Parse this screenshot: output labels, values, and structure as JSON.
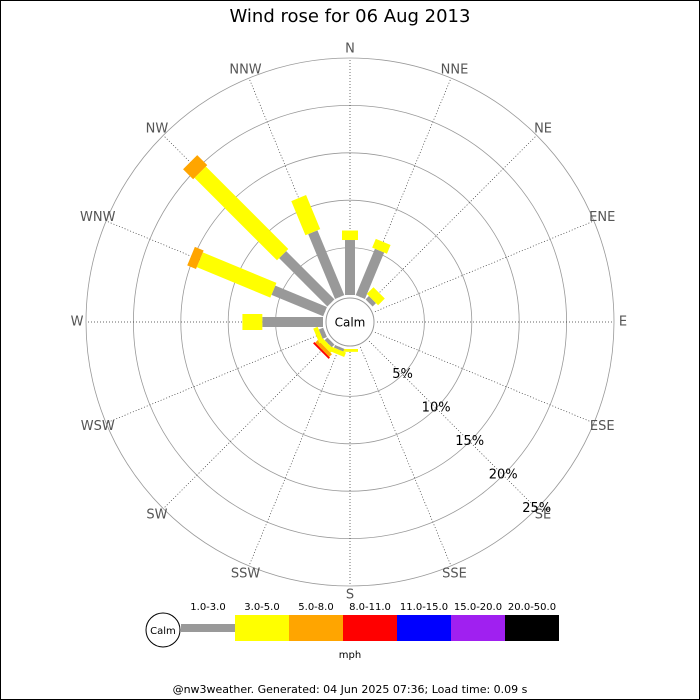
{
  "chart_data": {
    "type": "windrose",
    "title": "Wind rose for 06 Aug 2013",
    "categories": [
      "N",
      "NNE",
      "NE",
      "ENE",
      "E",
      "ESE",
      "SE",
      "SSE",
      "S",
      "SSW",
      "SW",
      "WSW",
      "W",
      "WNW",
      "NW",
      "NNW"
    ],
    "calm_label": "Calm",
    "legend_title": "mph",
    "rlim": [
      0,
      25
    ],
    "rticks": [
      {
        "value": 5,
        "label": "5%"
      },
      {
        "value": 10,
        "label": "10%"
      },
      {
        "value": 15,
        "label": "15%"
      },
      {
        "value": 20,
        "label": "20%"
      },
      {
        "value": 25,
        "label": "25%"
      }
    ],
    "grid": true,
    "series": [
      {
        "name": "1.0-3.0",
        "color": "#999999",
        "values": [
          5.8,
          5.3,
          0.5,
          0,
          0,
          0,
          0,
          0,
          0,
          0.3,
          0.4,
          0.5,
          6.4,
          5.9,
          7.2,
          7.4
        ]
      },
      {
        "name": "3.0-5.0",
        "color": "#ffff00",
        "values": [
          1.0,
          1.0,
          1.0,
          0,
          0,
          0,
          0,
          0,
          0.3,
          0.5,
          0.5,
          0.5,
          2.1,
          8.4,
          12.3,
          3.9
        ]
      },
      {
        "name": "5.0-8.0",
        "color": "#ffa500",
        "values": [
          0,
          0,
          0,
          0,
          0,
          0,
          0,
          0,
          0,
          0,
          0.4,
          0,
          0,
          1.0,
          1.5,
          0
        ]
      },
      {
        "name": "8.0-11.0",
        "color": "#ff0000",
        "values": [
          0,
          0,
          0,
          0,
          0,
          0,
          0,
          0,
          0,
          0,
          0.2,
          0,
          0,
          0,
          0,
          0
        ]
      },
      {
        "name": "11.0-15.0",
        "color": "#0000ff",
        "values": [
          0,
          0,
          0,
          0,
          0,
          0,
          0,
          0,
          0,
          0,
          0,
          0,
          0,
          0,
          0,
          0
        ]
      },
      {
        "name": "15.0-20.0",
        "color": "#a020f0",
        "values": [
          0,
          0,
          0,
          0,
          0,
          0,
          0,
          0,
          0,
          0,
          0,
          0,
          0,
          0,
          0,
          0
        ]
      },
      {
        "name": "20.0-50.0",
        "color": "#000000",
        "values": [
          0,
          0,
          0,
          0,
          0,
          0,
          0,
          0,
          0,
          0,
          0,
          0,
          0,
          0,
          0,
          0
        ]
      }
    ],
    "footer": "@nw3weather. Generated: 04 Jun 2025 07:36; Load time: 0.09 s"
  }
}
